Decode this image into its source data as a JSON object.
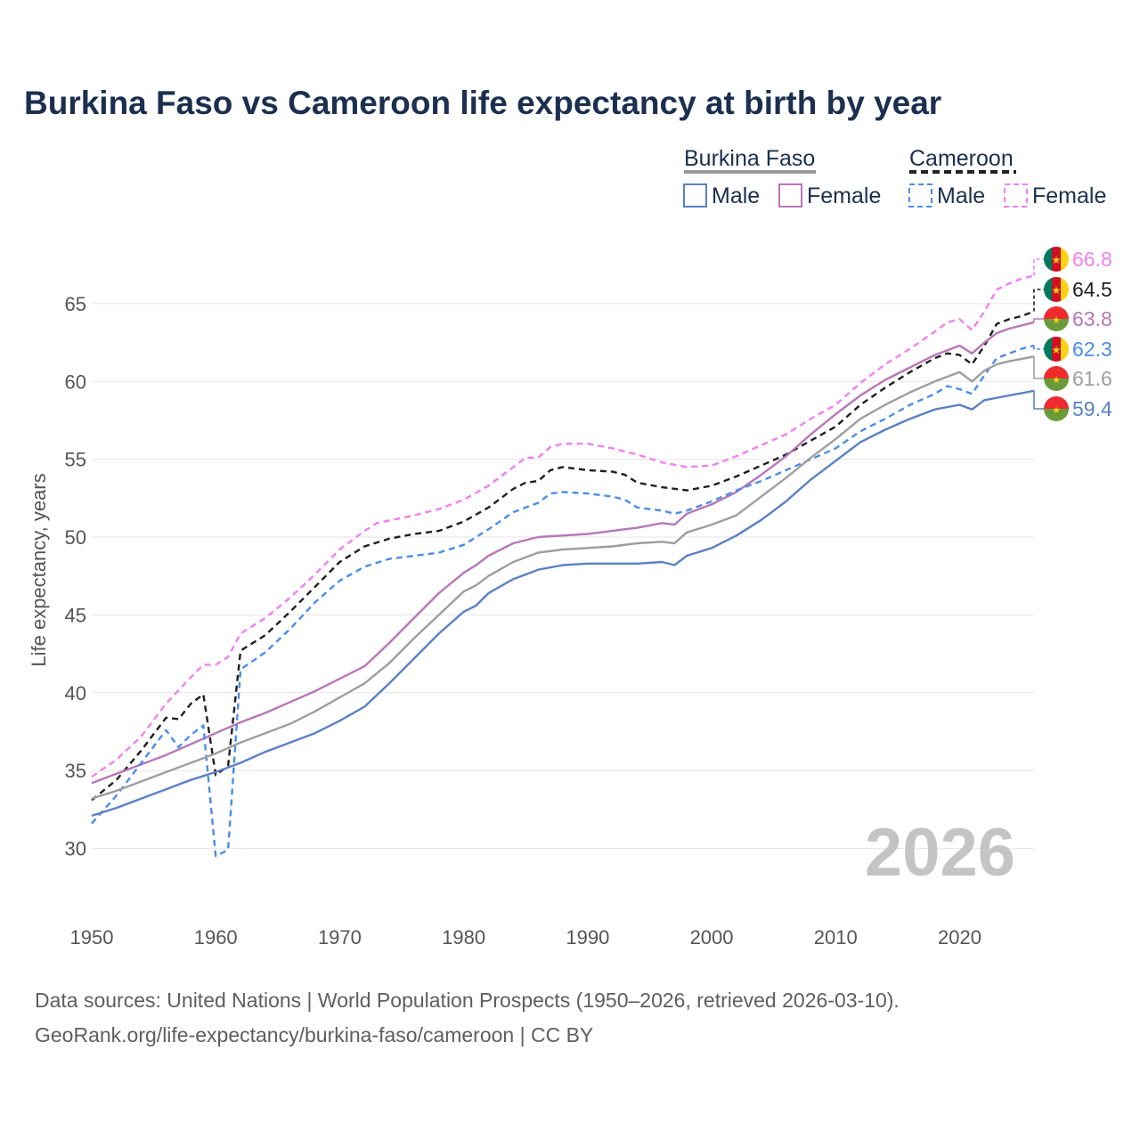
{
  "chart_data": {
    "type": "line",
    "title": "Burkina Faso vs Cameroon life expectancy at birth by year",
    "xlabel": "",
    "ylabel": "Life expectancy, years",
    "xlim": [
      1950,
      2026
    ],
    "ylim": [
      27,
      69
    ],
    "x_ticks": [
      1950,
      1960,
      1970,
      1980,
      1990,
      2000,
      2010,
      2020
    ],
    "y_ticks": [
      30,
      35,
      40,
      45,
      50,
      55,
      60,
      65
    ],
    "watermark_year": "2026",
    "legend": {
      "groups": [
        {
          "name": "Burkina Faso",
          "color": "#999999",
          "dash": "solid",
          "items": [
            "Male",
            "Female"
          ]
        },
        {
          "name": "Cameroon",
          "color": "#222222",
          "dash": "dashed",
          "items": [
            "Male",
            "Female"
          ]
        }
      ]
    },
    "source_lines": [
      "Data sources: United Nations | World Population Prospects (1950–2026, retrieved 2026-03-10).",
      "GeoRank.org/life-expectancy/burkina-faso/cameroon | CC BY"
    ],
    "series": [
      {
        "name": "Cameroon Female",
        "color": "#f27ff2",
        "dash": "dashed",
        "flag": "cameroon",
        "end_label": "66.8",
        "points": [
          [
            1950,
            34.6
          ],
          [
            1952,
            35.7
          ],
          [
            1954,
            37.2
          ],
          [
            1956,
            39.3
          ],
          [
            1958,
            41.0
          ],
          [
            1959,
            41.8
          ],
          [
            1960,
            41.8
          ],
          [
            1961,
            42.3
          ],
          [
            1962,
            43.8
          ],
          [
            1964,
            44.8
          ],
          [
            1966,
            46.1
          ],
          [
            1968,
            47.6
          ],
          [
            1970,
            49.2
          ],
          [
            1972,
            50.4
          ],
          [
            1973,
            50.9
          ],
          [
            1976,
            51.4
          ],
          [
            1978,
            51.8
          ],
          [
            1980,
            52.4
          ],
          [
            1982,
            53.3
          ],
          [
            1984,
            54.5
          ],
          [
            1985,
            55.1
          ],
          [
            1986,
            55.1
          ],
          [
            1987,
            55.8
          ],
          [
            1988,
            56.0
          ],
          [
            1990,
            56.0
          ],
          [
            1992,
            55.7
          ],
          [
            1994,
            55.3
          ],
          [
            1996,
            54.8
          ],
          [
            1998,
            54.5
          ],
          [
            2000,
            54.6
          ],
          [
            2002,
            55.2
          ],
          [
            2004,
            55.9
          ],
          [
            2006,
            56.6
          ],
          [
            2008,
            57.6
          ],
          [
            2010,
            58.5
          ],
          [
            2012,
            59.9
          ],
          [
            2014,
            61.1
          ],
          [
            2016,
            62.1
          ],
          [
            2018,
            63.2
          ],
          [
            2019,
            63.8
          ],
          [
            2020,
            64.0
          ],
          [
            2021,
            63.3
          ],
          [
            2022,
            64.5
          ],
          [
            2023,
            65.9
          ],
          [
            2024,
            66.3
          ],
          [
            2025,
            66.6
          ],
          [
            2026,
            66.8
          ]
        ]
      },
      {
        "name": "Cameroon both",
        "color": "#1f1f1f",
        "dash": "dashed",
        "flag": "cameroon",
        "end_label": "64.5",
        "points": [
          [
            1950,
            33.1
          ],
          [
            1952,
            34.4
          ],
          [
            1954,
            36.3
          ],
          [
            1956,
            38.4
          ],
          [
            1957,
            38.3
          ],
          [
            1958,
            39.3
          ],
          [
            1959,
            39.9
          ],
          [
            1960,
            34.7
          ],
          [
            1961,
            35.3
          ],
          [
            1962,
            42.7
          ],
          [
            1964,
            43.7
          ],
          [
            1966,
            45.2
          ],
          [
            1968,
            46.8
          ],
          [
            1970,
            48.4
          ],
          [
            1972,
            49.4
          ],
          [
            1974,
            49.9
          ],
          [
            1976,
            50.2
          ],
          [
            1978,
            50.4
          ],
          [
            1980,
            51.0
          ],
          [
            1982,
            51.9
          ],
          [
            1984,
            53.1
          ],
          [
            1985,
            53.5
          ],
          [
            1986,
            53.6
          ],
          [
            1987,
            54.3
          ],
          [
            1988,
            54.5
          ],
          [
            1990,
            54.3
          ],
          [
            1992,
            54.2
          ],
          [
            1993,
            54.0
          ],
          [
            1994,
            53.5
          ],
          [
            1996,
            53.2
          ],
          [
            1998,
            53.0
          ],
          [
            2000,
            53.3
          ],
          [
            2002,
            53.9
          ],
          [
            2004,
            54.6
          ],
          [
            2006,
            55.3
          ],
          [
            2008,
            56.2
          ],
          [
            2010,
            57.1
          ],
          [
            2012,
            58.5
          ],
          [
            2014,
            59.6
          ],
          [
            2016,
            60.6
          ],
          [
            2018,
            61.5
          ],
          [
            2019,
            61.8
          ],
          [
            2020,
            61.7
          ],
          [
            2021,
            61.1
          ],
          [
            2022,
            62.3
          ],
          [
            2023,
            63.7
          ],
          [
            2024,
            64.0
          ],
          [
            2025,
            64.2
          ],
          [
            2026,
            64.5
          ]
        ]
      },
      {
        "name": "Burkina Faso Female",
        "color": "#b777b7",
        "dash": "solid",
        "flag": "burkina",
        "end_label": "63.8",
        "points": [
          [
            1950,
            34.2
          ],
          [
            1952,
            34.8
          ],
          [
            1954,
            35.4
          ],
          [
            1956,
            36.0
          ],
          [
            1958,
            36.7
          ],
          [
            1960,
            37.4
          ],
          [
            1962,
            38.1
          ],
          [
            1964,
            38.7
          ],
          [
            1966,
            39.4
          ],
          [
            1968,
            40.1
          ],
          [
            1970,
            40.9
          ],
          [
            1972,
            41.7
          ],
          [
            1974,
            43.2
          ],
          [
            1976,
            44.8
          ],
          [
            1978,
            46.4
          ],
          [
            1980,
            47.7
          ],
          [
            1981,
            48.2
          ],
          [
            1982,
            48.8
          ],
          [
            1984,
            49.6
          ],
          [
            1986,
            50.0
          ],
          [
            1988,
            50.1
          ],
          [
            1990,
            50.2
          ],
          [
            1992,
            50.4
          ],
          [
            1994,
            50.6
          ],
          [
            1996,
            50.9
          ],
          [
            1997,
            50.8
          ],
          [
            1998,
            51.5
          ],
          [
            2000,
            52.1
          ],
          [
            2002,
            52.9
          ],
          [
            2004,
            54.0
          ],
          [
            2006,
            55.2
          ],
          [
            2008,
            56.6
          ],
          [
            2010,
            57.9
          ],
          [
            2012,
            59.1
          ],
          [
            2014,
            60.1
          ],
          [
            2016,
            60.9
          ],
          [
            2018,
            61.7
          ],
          [
            2020,
            62.3
          ],
          [
            2021,
            61.8
          ],
          [
            2022,
            62.5
          ],
          [
            2023,
            63.1
          ],
          [
            2024,
            63.4
          ],
          [
            2026,
            63.8
          ]
        ]
      },
      {
        "name": "Cameroon Male",
        "color": "#4a8de8",
        "dash": "dashed",
        "flag": "cameroon",
        "end_label": "62.3",
        "points": [
          [
            1950,
            31.6
          ],
          [
            1952,
            33.4
          ],
          [
            1954,
            35.5
          ],
          [
            1956,
            37.6
          ],
          [
            1957,
            36.5
          ],
          [
            1958,
            37.3
          ],
          [
            1959,
            37.9
          ],
          [
            1960,
            29.5
          ],
          [
            1961,
            29.9
          ],
          [
            1962,
            41.5
          ],
          [
            1964,
            42.6
          ],
          [
            1966,
            44.1
          ],
          [
            1968,
            45.8
          ],
          [
            1970,
            47.2
          ],
          [
            1972,
            48.1
          ],
          [
            1974,
            48.6
          ],
          [
            1976,
            48.8
          ],
          [
            1978,
            49.0
          ],
          [
            1980,
            49.5
          ],
          [
            1982,
            50.5
          ],
          [
            1984,
            51.6
          ],
          [
            1986,
            52.2
          ],
          [
            1987,
            52.8
          ],
          [
            1988,
            52.9
          ],
          [
            1990,
            52.8
          ],
          [
            1992,
            52.6
          ],
          [
            1993,
            52.4
          ],
          [
            1994,
            51.9
          ],
          [
            1996,
            51.7
          ],
          [
            1997,
            51.5
          ],
          [
            1998,
            51.7
          ],
          [
            2000,
            52.3
          ],
          [
            2002,
            53.0
          ],
          [
            2004,
            53.6
          ],
          [
            2006,
            54.3
          ],
          [
            2008,
            55.0
          ],
          [
            2010,
            55.7
          ],
          [
            2012,
            56.8
          ],
          [
            2014,
            57.6
          ],
          [
            2016,
            58.5
          ],
          [
            2018,
            59.2
          ],
          [
            2019,
            59.7
          ],
          [
            2020,
            59.5
          ],
          [
            2021,
            59.2
          ],
          [
            2022,
            60.4
          ],
          [
            2023,
            61.5
          ],
          [
            2024,
            61.8
          ],
          [
            2025,
            62.1
          ],
          [
            2026,
            62.3
          ]
        ]
      },
      {
        "name": "Burkina Faso both",
        "color": "#9e9e9e",
        "dash": "solid",
        "flag": "burkina",
        "end_label": "61.6",
        "points": [
          [
            1950,
            33.2
          ],
          [
            1952,
            33.7
          ],
          [
            1954,
            34.3
          ],
          [
            1956,
            34.9
          ],
          [
            1958,
            35.5
          ],
          [
            1960,
            36.1
          ],
          [
            1962,
            36.8
          ],
          [
            1964,
            37.4
          ],
          [
            1966,
            38.0
          ],
          [
            1968,
            38.8
          ],
          [
            1970,
            39.7
          ],
          [
            1972,
            40.6
          ],
          [
            1974,
            41.9
          ],
          [
            1976,
            43.5
          ],
          [
            1978,
            45.0
          ],
          [
            1980,
            46.5
          ],
          [
            1981,
            46.9
          ],
          [
            1982,
            47.5
          ],
          [
            1984,
            48.4
          ],
          [
            1986,
            49.0
          ],
          [
            1988,
            49.2
          ],
          [
            1990,
            49.3
          ],
          [
            1992,
            49.4
          ],
          [
            1994,
            49.6
          ],
          [
            1996,
            49.7
          ],
          [
            1997,
            49.6
          ],
          [
            1998,
            50.3
          ],
          [
            2000,
            50.8
          ],
          [
            2002,
            51.4
          ],
          [
            2004,
            52.6
          ],
          [
            2006,
            53.8
          ],
          [
            2008,
            55.1
          ],
          [
            2010,
            56.3
          ],
          [
            2012,
            57.6
          ],
          [
            2014,
            58.5
          ],
          [
            2016,
            59.3
          ],
          [
            2018,
            60.0
          ],
          [
            2020,
            60.6
          ],
          [
            2021,
            60.0
          ],
          [
            2022,
            60.7
          ],
          [
            2023,
            61.1
          ],
          [
            2024,
            61.3
          ],
          [
            2026,
            61.6
          ]
        ]
      },
      {
        "name": "Burkina Faso Male",
        "color": "#5a80c4",
        "dash": "solid",
        "flag": "burkina",
        "end_label": "59.4",
        "points": [
          [
            1950,
            32.1
          ],
          [
            1952,
            32.6
          ],
          [
            1954,
            33.2
          ],
          [
            1956,
            33.8
          ],
          [
            1957,
            34.1
          ],
          [
            1958,
            34.4
          ],
          [
            1960,
            34.9
          ],
          [
            1962,
            35.5
          ],
          [
            1964,
            36.2
          ],
          [
            1966,
            36.8
          ],
          [
            1968,
            37.4
          ],
          [
            1970,
            38.2
          ],
          [
            1972,
            39.1
          ],
          [
            1974,
            40.6
          ],
          [
            1976,
            42.2
          ],
          [
            1978,
            43.8
          ],
          [
            1980,
            45.2
          ],
          [
            1981,
            45.6
          ],
          [
            1982,
            46.4
          ],
          [
            1984,
            47.3
          ],
          [
            1986,
            47.9
          ],
          [
            1988,
            48.2
          ],
          [
            1990,
            48.3
          ],
          [
            1992,
            48.3
          ],
          [
            1994,
            48.3
          ],
          [
            1996,
            48.4
          ],
          [
            1997,
            48.2
          ],
          [
            1998,
            48.8
          ],
          [
            2000,
            49.3
          ],
          [
            2002,
            50.1
          ],
          [
            2004,
            51.1
          ],
          [
            2006,
            52.3
          ],
          [
            2008,
            53.7
          ],
          [
            2010,
            54.9
          ],
          [
            2012,
            56.1
          ],
          [
            2014,
            56.9
          ],
          [
            2016,
            57.6
          ],
          [
            2018,
            58.2
          ],
          [
            2020,
            58.5
          ],
          [
            2021,
            58.2
          ],
          [
            2022,
            58.8
          ],
          [
            2024,
            59.1
          ],
          [
            2026,
            59.4
          ]
        ]
      }
    ]
  }
}
